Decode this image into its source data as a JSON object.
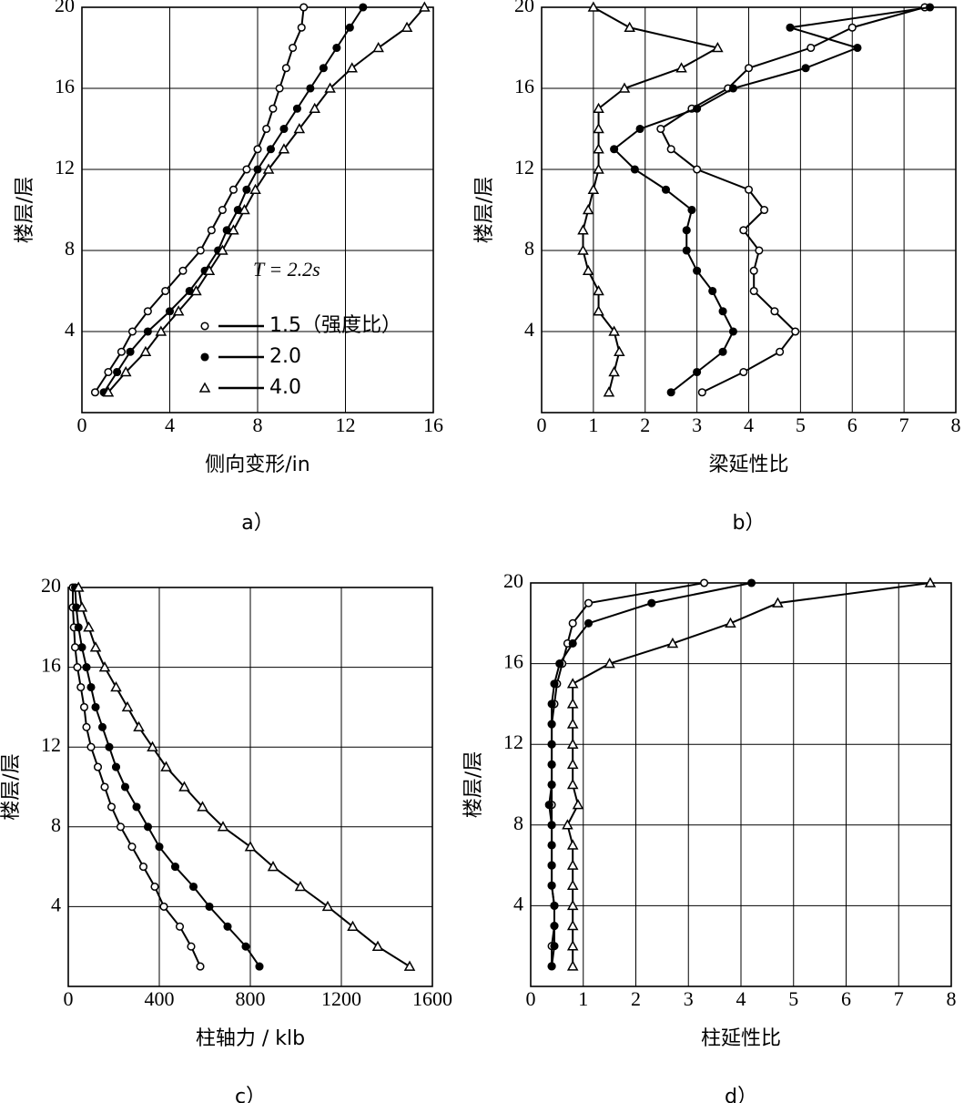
{
  "chart_data": [
    {
      "type": "line",
      "caption": "a）",
      "xlabel": "侧向变形/in",
      "ylabel": "楼层/层",
      "annotation": "T = 2.2s",
      "xlim": [
        0,
        16
      ],
      "xticks": [
        0,
        4,
        8,
        12,
        16
      ],
      "ylim": [
        0,
        20
      ],
      "yticks": [
        4,
        8,
        12,
        16,
        20
      ],
      "grid": true,
      "legend": "lower-right",
      "y": [
        1,
        2,
        3,
        4,
        5,
        6,
        7,
        8,
        9,
        10,
        11,
        12,
        13,
        14,
        15,
        16,
        17,
        18,
        19,
        20
      ],
      "series": [
        {
          "name": "1.5（强度比）",
          "color": "#000000",
          "marker": "circle-open",
          "values": [
            0.6,
            1.2,
            1.8,
            2.3,
            3.0,
            3.8,
            4.6,
            5.4,
            5.9,
            6.4,
            6.9,
            7.5,
            8.0,
            8.4,
            8.7,
            9.0,
            9.3,
            9.6,
            10.0,
            10.1
          ]
        },
        {
          "name": "2.0",
          "color": "#000000",
          "marker": "circle-filled",
          "values": [
            1.0,
            1.6,
            2.2,
            3.0,
            4.0,
            4.9,
            5.6,
            6.2,
            6.6,
            7.1,
            7.5,
            8.0,
            8.6,
            9.2,
            9.8,
            10.4,
            11.0,
            11.6,
            12.2,
            12.8
          ]
        },
        {
          "name": "4.0",
          "color": "#000000",
          "marker": "triangle-open",
          "values": [
            1.2,
            2.0,
            2.9,
            3.6,
            4.4,
            5.2,
            5.8,
            6.4,
            6.9,
            7.4,
            7.9,
            8.5,
            9.2,
            9.9,
            10.6,
            11.3,
            12.3,
            13.5,
            14.8,
            15.6
          ]
        }
      ]
    },
    {
      "type": "line",
      "caption": "b）",
      "xlabel": "梁延性比",
      "ylabel": "楼层/层",
      "xlim": [
        0,
        8
      ],
      "xticks": [
        0,
        1,
        2,
        3,
        4,
        5,
        6,
        7,
        8
      ],
      "ylim": [
        0,
        20
      ],
      "yticks": [
        4,
        8,
        12,
        16,
        20
      ],
      "grid": true,
      "y": [
        1,
        2,
        3,
        4,
        5,
        6,
        7,
        8,
        9,
        10,
        11,
        12,
        13,
        14,
        15,
        16,
        17,
        18,
        19,
        20
      ],
      "series": [
        {
          "color": "#000000",
          "marker": "circle-open",
          "values": [
            3.1,
            3.9,
            4.6,
            4.9,
            4.5,
            4.1,
            4.1,
            4.2,
            3.9,
            4.3,
            4.0,
            3.0,
            2.5,
            2.3,
            2.9,
            3.6,
            4.0,
            5.2,
            6.0,
            7.4
          ]
        },
        {
          "color": "#000000",
          "marker": "circle-filled",
          "values": [
            2.5,
            3.0,
            3.5,
            3.7,
            3.5,
            3.3,
            3.0,
            2.8,
            2.8,
            2.9,
            2.4,
            1.8,
            1.4,
            1.9,
            3.0,
            3.7,
            5.1,
            6.1,
            4.8,
            7.5
          ]
        },
        {
          "color": "#000000",
          "marker": "triangle-open",
          "values": [
            1.3,
            1.4,
            1.5,
            1.4,
            1.1,
            1.1,
            0.9,
            0.8,
            0.8,
            0.9,
            1.0,
            1.1,
            1.1,
            1.1,
            1.1,
            1.6,
            2.7,
            3.4,
            1.7,
            1.0
          ]
        }
      ]
    },
    {
      "type": "line",
      "caption": "c）",
      "xlabel": "柱轴力 / klb",
      "ylabel": "楼层/层",
      "xlim": [
        0,
        1600
      ],
      "xticks": [
        0,
        400,
        800,
        1200,
        1600
      ],
      "ylim": [
        0,
        20
      ],
      "yticks": [
        4,
        8,
        12,
        16,
        20
      ],
      "grid": true,
      "y": [
        1,
        2,
        3,
        4,
        5,
        6,
        7,
        8,
        9,
        10,
        11,
        12,
        13,
        14,
        15,
        16,
        17,
        18,
        19,
        20
      ],
      "series": [
        {
          "color": "#000000",
          "marker": "circle-open",
          "values": [
            580,
            540,
            490,
            420,
            380,
            330,
            280,
            230,
            190,
            160,
            130,
            100,
            80,
            70,
            55,
            40,
            30,
            25,
            20,
            20
          ]
        },
        {
          "color": "#000000",
          "marker": "circle-filled",
          "values": [
            840,
            780,
            700,
            620,
            550,
            470,
            400,
            350,
            300,
            250,
            210,
            180,
            150,
            120,
            100,
            80,
            60,
            45,
            35,
            30
          ]
        },
        {
          "color": "#000000",
          "marker": "triangle-open",
          "values": [
            1500,
            1360,
            1250,
            1140,
            1020,
            900,
            800,
            680,
            590,
            510,
            430,
            370,
            310,
            260,
            210,
            160,
            120,
            90,
            60,
            45
          ]
        }
      ]
    },
    {
      "type": "line",
      "caption": "d）",
      "xlabel": "柱延性比",
      "ylabel": "楼层/层",
      "xlim": [
        0,
        8
      ],
      "xticks": [
        0,
        1,
        2,
        3,
        4,
        5,
        6,
        7,
        8
      ],
      "ylim": [
        0,
        20
      ],
      "yticks": [
        4,
        8,
        12,
        16,
        20
      ],
      "grid": true,
      "y": [
        1,
        2,
        3,
        4,
        5,
        6,
        7,
        8,
        9,
        10,
        11,
        12,
        13,
        14,
        15,
        16,
        17,
        18,
        19,
        20
      ],
      "series": [
        {
          "color": "#000000",
          "marker": "circle-open",
          "values": [
            0.4,
            0.4,
            0.45,
            0.45,
            0.4,
            0.4,
            0.4,
            0.4,
            0.4,
            0.4,
            0.4,
            0.4,
            0.4,
            0.45,
            0.5,
            0.6,
            0.7,
            0.8,
            1.1,
            3.3
          ]
        },
        {
          "color": "#000000",
          "marker": "circle-filled",
          "values": [
            0.4,
            0.45,
            0.45,
            0.45,
            0.4,
            0.4,
            0.4,
            0.4,
            0.35,
            0.4,
            0.4,
            0.4,
            0.4,
            0.4,
            0.45,
            0.55,
            0.8,
            1.1,
            2.3,
            4.2
          ]
        },
        {
          "color": "#000000",
          "marker": "triangle-open",
          "values": [
            0.8,
            0.8,
            0.8,
            0.8,
            0.8,
            0.8,
            0.8,
            0.7,
            0.9,
            0.8,
            0.8,
            0.8,
            0.8,
            0.8,
            0.8,
            1.5,
            2.7,
            3.8,
            4.7,
            7.6
          ]
        }
      ]
    }
  ]
}
